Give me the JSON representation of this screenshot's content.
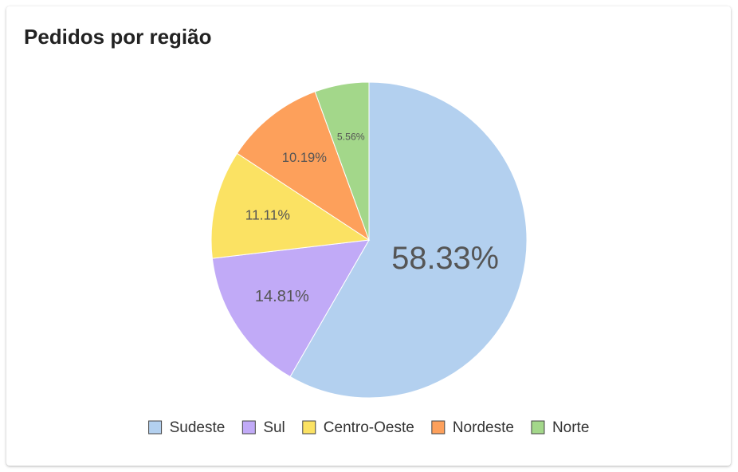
{
  "chart_data": {
    "type": "pie",
    "title": "Pedidos por região",
    "categories": [
      "Sudeste",
      "Sul",
      "Centro-Oeste",
      "Nordeste",
      "Norte"
    ],
    "values": [
      58.33,
      14.81,
      11.11,
      10.19,
      5.56
    ],
    "value_labels": [
      "58.33%",
      "14.81%",
      "11.11%",
      "10.19%",
      "5.56%"
    ],
    "colors": [
      "#b3d0ef",
      "#c1aaf7",
      "#fbe263",
      "#fda05b",
      "#a3d78a"
    ],
    "legend": "bottom"
  }
}
